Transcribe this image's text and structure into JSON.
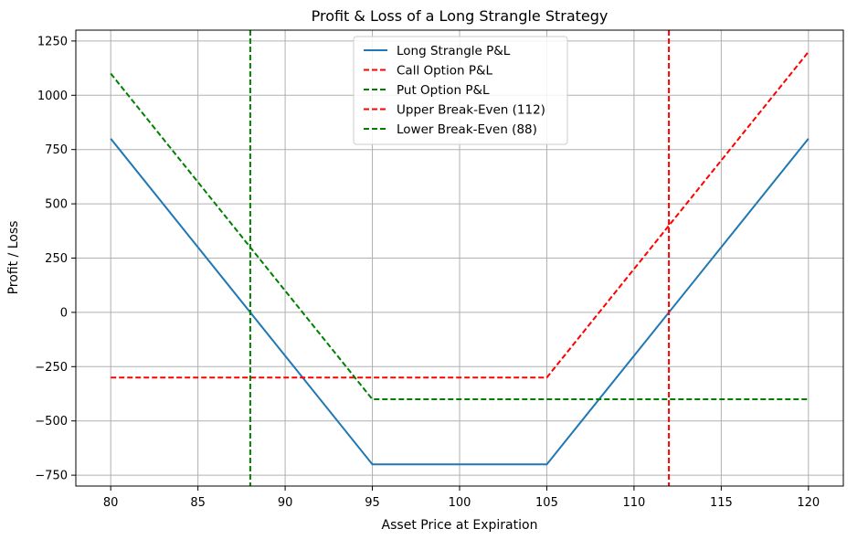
{
  "chart_data": {
    "type": "line",
    "title": "Profit & Loss of a Long Strangle Strategy",
    "xlabel": "Asset Price at Expiration",
    "ylabel": "Profit / Loss",
    "xlim": [
      78,
      122
    ],
    "ylim": [
      -800,
      1300
    ],
    "xticks": [
      80,
      85,
      90,
      95,
      100,
      105,
      110,
      115,
      120
    ],
    "yticks": [
      -750,
      -500,
      -250,
      0,
      250,
      500,
      750,
      1000,
      1250
    ],
    "xtick_labels": [
      "80",
      "85",
      "90",
      "95",
      "100",
      "105",
      "110",
      "115",
      "120"
    ],
    "ytick_labels": [
      "−750",
      "−500",
      "−250",
      "0",
      "250",
      "500",
      "750",
      "1000",
      "1250"
    ],
    "grid": true,
    "legend_position": "top-center",
    "series": [
      {
        "name": "Long Strangle P&L",
        "color": "#1f77b4",
        "style": "solid",
        "x": [
          80,
          95,
          105,
          120
        ],
        "y": [
          800,
          -700,
          -700,
          800
        ]
      },
      {
        "name": "Call Option P&L",
        "color": "#ff0000",
        "style": "dashed",
        "x": [
          80,
          105,
          120
        ],
        "y": [
          -300,
          -300,
          1200
        ]
      },
      {
        "name": "Put Option P&L",
        "color": "#008000",
        "style": "dashed",
        "x": [
          80,
          95,
          120
        ],
        "y": [
          1100,
          -400,
          -400
        ]
      },
      {
        "name": "Upper Break-Even (112)",
        "color": "#ff0000",
        "style": "dashed",
        "vline": 112
      },
      {
        "name": "Lower Break-Even (88)",
        "color": "#008000",
        "style": "dashed",
        "vline": 88
      }
    ]
  }
}
